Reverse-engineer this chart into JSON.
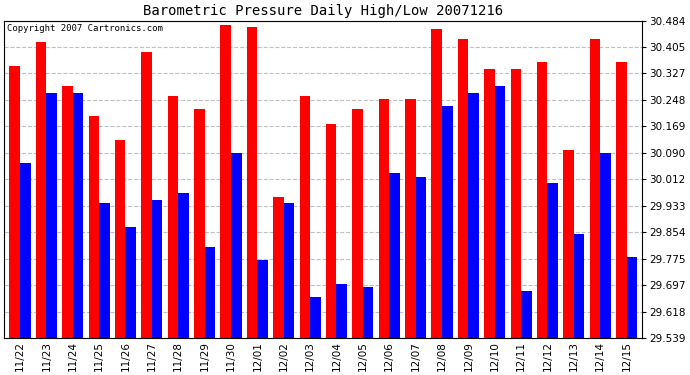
{
  "title": "Barometric Pressure Daily High/Low 20071216",
  "copyright": "Copyright 2007 Cartronics.com",
  "dates": [
    "11/22",
    "11/23",
    "11/24",
    "11/25",
    "11/26",
    "11/27",
    "11/28",
    "11/29",
    "11/30",
    "12/01",
    "12/02",
    "12/03",
    "12/04",
    "12/05",
    "12/06",
    "12/07",
    "12/08",
    "12/09",
    "12/10",
    "12/11",
    "12/12",
    "12/13",
    "12/14",
    "12/15"
  ],
  "highs": [
    30.35,
    30.42,
    30.29,
    30.2,
    30.13,
    30.39,
    30.26,
    30.22,
    30.47,
    30.465,
    29.96,
    30.26,
    30.175,
    30.22,
    30.25,
    30.25,
    30.46,
    30.43,
    30.34,
    30.34,
    30.36,
    30.1,
    30.43,
    30.36
  ],
  "lows": [
    30.06,
    30.27,
    30.27,
    29.94,
    29.87,
    29.95,
    29.97,
    29.81,
    30.09,
    29.77,
    29.94,
    29.66,
    29.7,
    29.69,
    30.03,
    30.02,
    30.23,
    30.27,
    30.29,
    29.68,
    30.0,
    29.85,
    30.09,
    29.78
  ],
  "bar_color_high": "#ff0000",
  "bar_color_low": "#0000ff",
  "bg_color": "#ffffff",
  "grid_color": "#c0c0c0",
  "title_color": "#000000",
  "copyright_color": "#000000",
  "ylim_min": 29.539,
  "ylim_max": 30.484,
  "yticks": [
    29.539,
    29.618,
    29.697,
    29.775,
    29.854,
    29.933,
    30.012,
    30.09,
    30.169,
    30.248,
    30.327,
    30.405,
    30.484
  ]
}
